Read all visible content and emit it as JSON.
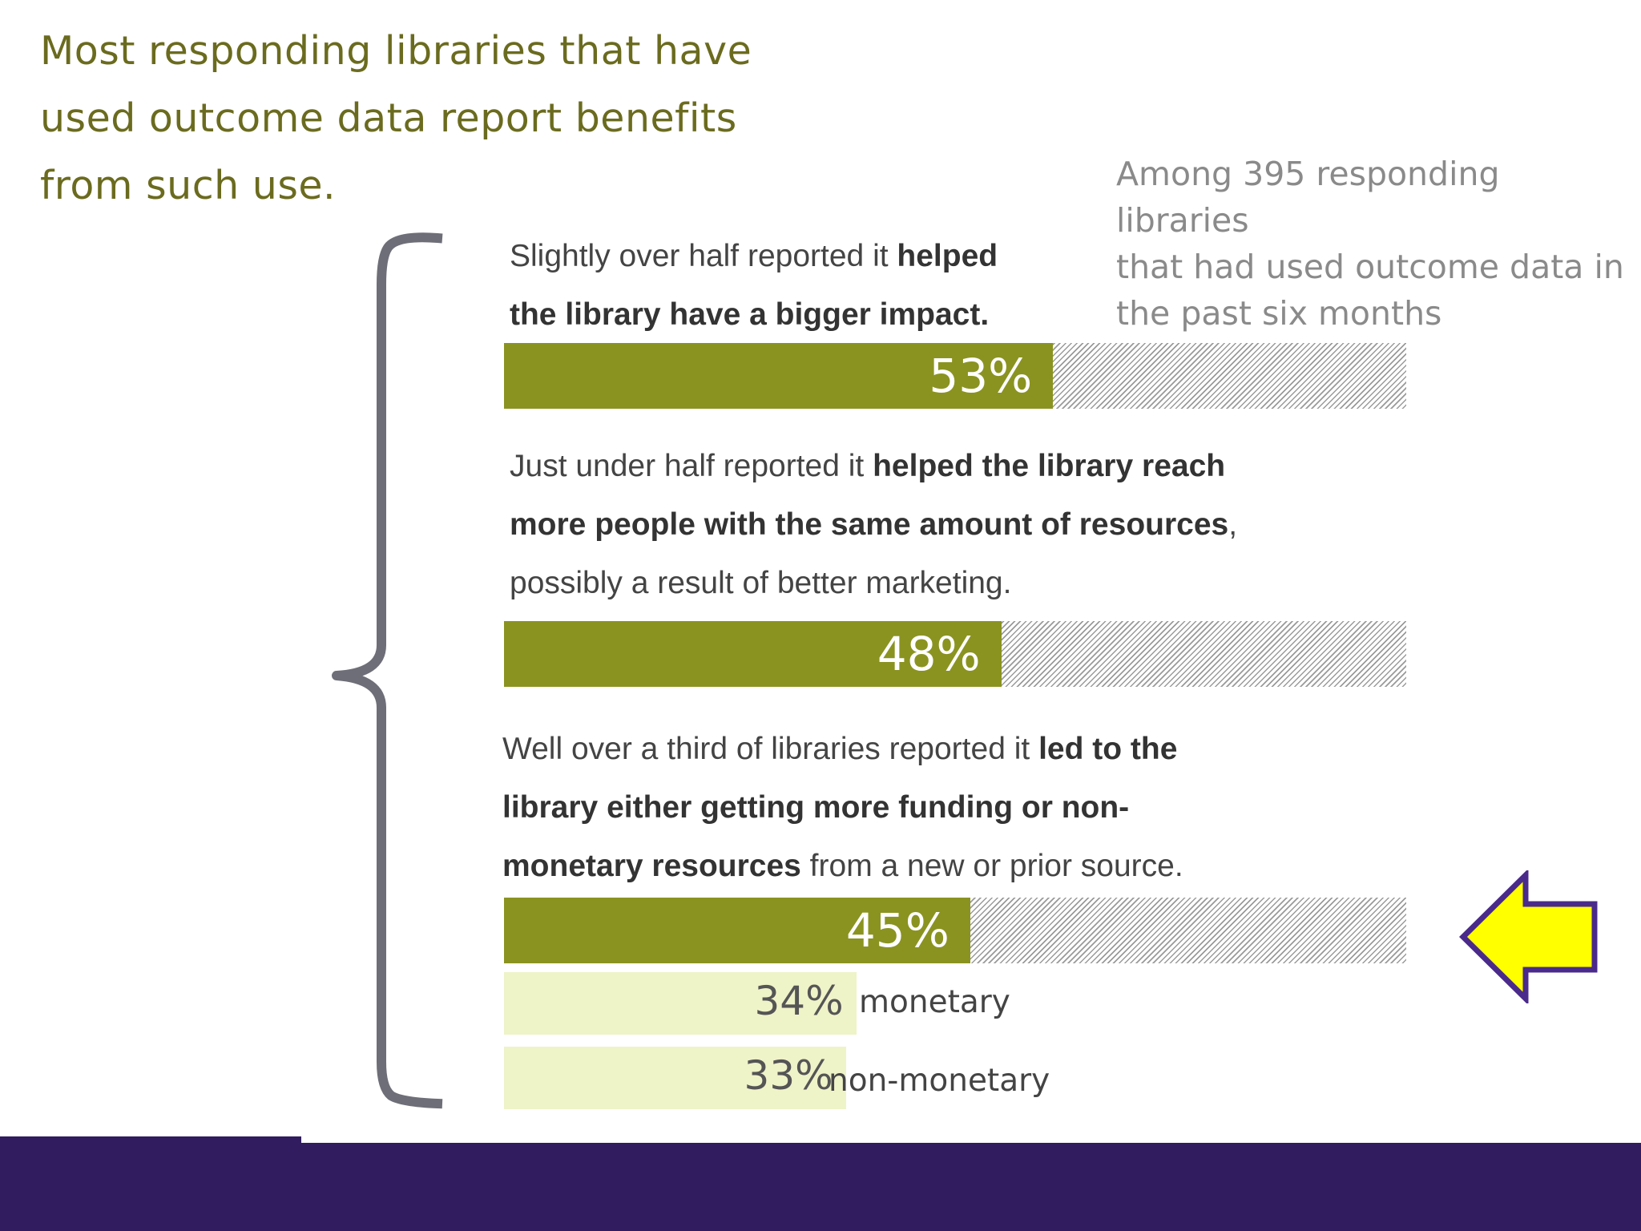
{
  "headline": {
    "lines": [
      "Most responding libraries that have",
      "used outcome data report benefits",
      "from such use."
    ]
  },
  "note": {
    "lines": [
      "Among 395 responding libraries",
      "that had used outcome data in",
      "the past six months"
    ]
  },
  "items": [
    {
      "text_lines": [
        [
          {
            "t": "Slightly over half reported it ",
            "b": false
          },
          {
            "t": "helped",
            "b": true
          }
        ],
        [
          {
            "t": "the library have a bigger impact.",
            "b": true
          }
        ]
      ],
      "value_label": "53%"
    },
    {
      "text_lines": [
        [
          {
            "t": "Just under half reported it ",
            "b": false
          },
          {
            "t": "helped the library reach",
            "b": true
          }
        ],
        [
          {
            "t": "more people with the same amount of resources",
            "b": true
          },
          {
            "t": ",",
            "b": false
          }
        ],
        [
          {
            "t": "possibly a result of better marketing.",
            "b": false
          }
        ]
      ],
      "value_label": "48%"
    },
    {
      "text_lines": [
        [
          {
            "t": "Well over a third of libraries reported it ",
            "b": false
          },
          {
            "t": "led to the",
            "b": true
          }
        ],
        [
          {
            "t": "library either getting more funding or non-",
            "b": true
          }
        ],
        [
          {
            "t": "monetary resources",
            "b": true
          },
          {
            "t": " from a new or prior source.",
            "b": false
          }
        ]
      ],
      "value_label": "45%"
    }
  ],
  "sub_items": [
    {
      "value_label": "34%",
      "label": "monetary"
    },
    {
      "value_label": "33%",
      "label": "non-monetary"
    }
  ],
  "colors": {
    "headline": "#6b6b1f",
    "bar_fill": "#8a9320",
    "sub_fill": "#eff3c8",
    "brace": "#6e6e78",
    "arrow_fill": "#ffff00",
    "arrow_stroke": "#4a2a8a",
    "footer": "#301c5e"
  },
  "chart_data": {
    "type": "bar",
    "orientation": "horizontal",
    "categories": [
      "helped the library have a bigger impact",
      "helped the library reach more people with the same amount of resources",
      "led to the library either getting more funding or non-monetary resources",
      "monetary",
      "non-monetary"
    ],
    "values": [
      53,
      48,
      45,
      34,
      33
    ],
    "xlim": [
      0,
      100
    ],
    "unit": "%"
  }
}
